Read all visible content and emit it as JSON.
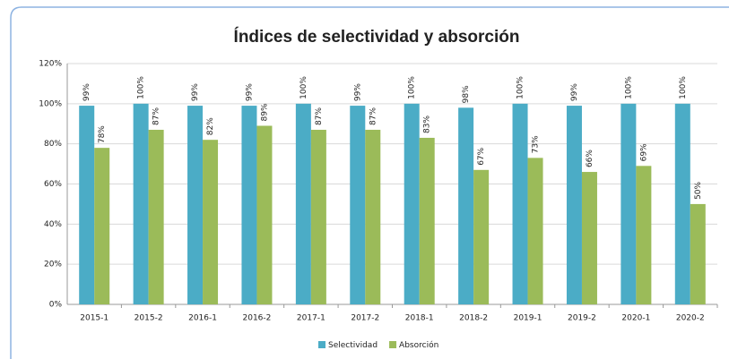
{
  "chart_data": {
    "type": "bar",
    "title": "Índices de selectividad y absorción",
    "categories": [
      "2015-1",
      "2015-2",
      "2016-1",
      "2016-2",
      "2017-1",
      "2017-2",
      "2018-1",
      "2018-2",
      "2019-1",
      "2019-2",
      "2020-1",
      "2020-2"
    ],
    "series": [
      {
        "name": "Selectividad",
        "color": "#4bacc6",
        "values": [
          99,
          100,
          99,
          99,
          100,
          99,
          100,
          98,
          100,
          99,
          100,
          100
        ],
        "value_labels": [
          "99%",
          "100%",
          "99%",
          "99%",
          "100%",
          "99%",
          "100%",
          "98%",
          "100%",
          "99%",
          "100%",
          "100%"
        ]
      },
      {
        "name": "Absorción",
        "color": "#9bbb59",
        "values": [
          78,
          87,
          82,
          89,
          87,
          87,
          83,
          67,
          73,
          66,
          69,
          50
        ],
        "value_labels": [
          "78%",
          "87%",
          "82%",
          "89%",
          "87%",
          "87%",
          "83%",
          "67%",
          "73%",
          "66%",
          "69%",
          "50%"
        ]
      }
    ],
    "ylim": [
      0,
      120
    ],
    "yticks": [
      {
        "value": 0,
        "label": "0%"
      },
      {
        "value": 20,
        "label": "20%"
      },
      {
        "value": 40,
        "label": "40%"
      },
      {
        "value": 60,
        "label": "60%"
      },
      {
        "value": 80,
        "label": "80%"
      },
      {
        "value": 100,
        "label": "100%"
      },
      {
        "value": 120,
        "label": "120%"
      }
    ],
    "grid": true,
    "legend": "bottom"
  }
}
